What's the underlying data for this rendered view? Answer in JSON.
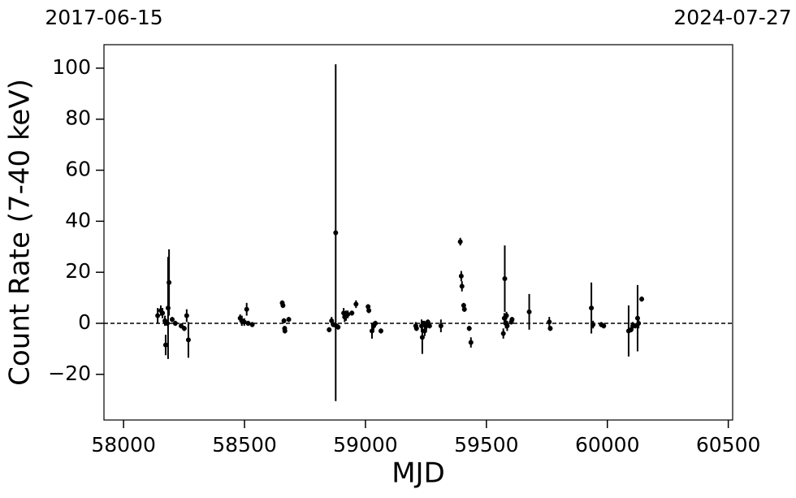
{
  "chart_data": {
    "type": "errorbar",
    "xlabel": "MJD",
    "ylabel": "Count Rate (7-40 keV)",
    "xlim": [
      57919,
      60518
    ],
    "ylim": [
      -37.9,
      109.2
    ],
    "xticks": [
      58000,
      58500,
      59000,
      59500,
      60000,
      60500
    ],
    "yticks": [
      {
        "value": -20,
        "label": "−20"
      },
      0,
      20,
      40,
      60,
      80,
      100
    ],
    "x2ticks": [
      {
        "value": 57919,
        "label": "2017-06-15"
      },
      {
        "value": 60518,
        "label": "2024-07-27"
      }
    ],
    "hline": 0,
    "series": [
      {
        "color": "#000000",
        "x": [
          58141,
          58154,
          58161,
          58171,
          58174,
          58181,
          58184,
          58188,
          58201,
          58214,
          58238,
          58251,
          58261,
          58268,
          58482,
          58489,
          58499,
          58509,
          58515,
          58532,
          58656,
          58659,
          58663,
          58666,
          58667,
          58683,
          58850,
          58860,
          58867,
          58877,
          58880,
          58887,
          58910,
          58914,
          58920,
          58927,
          58944,
          58961,
          59011,
          59014,
          59027,
          59034,
          59041,
          59064,
          59208,
          59211,
          59232,
          59235,
          59242,
          59245,
          59252,
          59258,
          59265,
          59312,
          59392,
          59396,
          59399,
          59406,
          59409,
          59429,
          59436,
          59570,
          59574,
          59576,
          59580,
          59583,
          59586,
          59603,
          59606,
          59677,
          59760,
          59764,
          59934,
          59941,
          59975,
          59985,
          60088,
          60098,
          60105,
          60115,
          60125,
          60129,
          60142
        ],
        "values": [
          3,
          5,
          4,
          1,
          -8.5,
          0,
          6,
          16,
          1.5,
          0,
          -1,
          -2,
          3,
          -6.5,
          2,
          1,
          0.5,
          5.5,
          0,
          -0.5,
          8,
          7,
          1,
          -2,
          -3,
          1.5,
          -2.5,
          1,
          -0.5,
          35.5,
          -1,
          -1.5,
          4,
          2.5,
          3,
          3.5,
          4,
          7.5,
          6.5,
          5,
          -3,
          -1,
          0,
          -3,
          -1,
          -2,
          -1,
          -5.5,
          0,
          -3,
          -1,
          0.5,
          -1,
          -1,
          32,
          18.5,
          14.5,
          7,
          5.5,
          -2,
          -7.5,
          -4,
          2,
          17.5,
          0,
          3,
          -1,
          0.5,
          1.5,
          4.5,
          0.5,
          -2,
          6,
          -0.5,
          -0.5,
          -1,
          -3,
          -2.5,
          -1,
          -1,
          2,
          0,
          9.5
        ],
        "errors": [
          3,
          2,
          2,
          2,
          4,
          1,
          20,
          13,
          1,
          1,
          1,
          1,
          2.5,
          7,
          1.5,
          2,
          1.5,
          2.5,
          1,
          1,
          1,
          1,
          1,
          1,
          1,
          1,
          1,
          1.5,
          1,
          66,
          1,
          1,
          2,
          2,
          2,
          1.5,
          1,
          1.5,
          1,
          1,
          3,
          1.5,
          1,
          1,
          1.5,
          1,
          2.5,
          6.5,
          1,
          2,
          1.5,
          1,
          1,
          2.5,
          1.5,
          2,
          2,
          1,
          1,
          1,
          2,
          2,
          2,
          13,
          2,
          1.5,
          2,
          1,
          1,
          7,
          2,
          1,
          10,
          1.5,
          1,
          1,
          10,
          1,
          1.5,
          1,
          13,
          2,
          1
        ]
      }
    ]
  }
}
